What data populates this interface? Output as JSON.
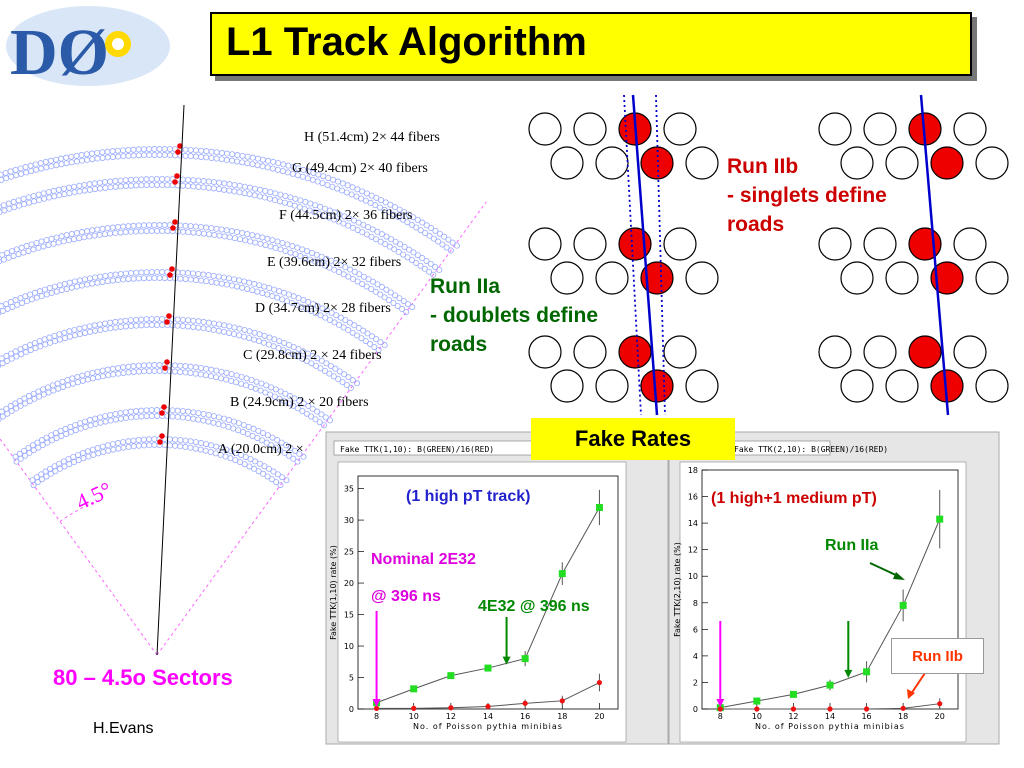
{
  "logo": {
    "text": "DØ",
    "icon": "d0-experiment-logo"
  },
  "slide_title": "L1 Track Algorithm",
  "layers": [
    {
      "label": "H (51.4cm) 2× 44 fibers"
    },
    {
      "label": "G (49.4cm) 2× 40 fibers"
    },
    {
      "label": "F (44.5cm) 2× 36 fibers"
    },
    {
      "label": "E (39.6cm) 2× 32 fibers"
    },
    {
      "label": "D (34.7cm) 2× 28 fibers"
    },
    {
      "label": "C (29.8cm) 2 × 24 fibers"
    },
    {
      "label": "B (24.9cm) 2 × 20 fibers"
    },
    {
      "label": "A (20.0cm) 2 ×"
    }
  ],
  "sector_angle_label": "4.5°",
  "sectors_caption": "80 – 4.5o Sectors",
  "author": "H.Evans",
  "run2a_text": {
    "line1": "Run IIa",
    "line2": "- doublets define",
    "line3": "roads"
  },
  "run2b_text": {
    "line1": "Run IIb",
    "line2": "- singlets define",
    "line3": "roads"
  },
  "fake_rates_label": "Fake Rates",
  "colors": {
    "title_bg": "#ffff00",
    "hit": "#ee0000",
    "track": "#0000cc",
    "run2a": "#006600",
    "run2b": "#cc0000",
    "magenta": "#ff00ff"
  },
  "chart_data": [
    {
      "type": "line",
      "pad_header": "Fake TTK(1,10): B(GREEN)/16(RED)",
      "annotation": "(1 high pT track)",
      "xlabel": "No. of Poisson pythia minibias",
      "ylabel": "Fake TTK(1,10) rate (%)",
      "xlim": [
        7,
        21
      ],
      "ylim": [
        0,
        37
      ],
      "xticks": [
        8,
        10,
        12,
        14,
        16,
        18,
        20
      ],
      "yticks": [
        0,
        5,
        10,
        15,
        20,
        25,
        30,
        35
      ],
      "x": [
        8,
        10,
        12,
        14,
        16,
        18,
        20
      ],
      "series": [
        {
          "color": "green",
          "values": [
            1.0,
            3.2,
            5.3,
            6.5,
            8.0,
            21.5,
            32.0
          ],
          "errors": [
            0.3,
            0.3,
            0.3,
            0.4,
            1.2,
            1.8,
            2.8
          ]
        },
        {
          "color": "red",
          "values": [
            0.1,
            0.1,
            0.2,
            0.4,
            0.9,
            1.3,
            4.2
          ],
          "errors": [
            0.1,
            0.1,
            0.2,
            0.3,
            0.6,
            0.8,
            1.4
          ]
        }
      ],
      "callouts": [
        {
          "text1": "Nominal 2E32",
          "text2": "@ 396 ns",
          "arrow_x": 8,
          "color": "#ff00ff"
        },
        {
          "text1": "4E32 @ 396 ns",
          "arrow_x": 15,
          "color": "#008800"
        }
      ]
    },
    {
      "type": "line",
      "pad_header": "Fake TTK(2,10): B(GREEN)/16(RED)",
      "annotation": "(1 high+1 medium pT)",
      "xlabel": "No. of Poisson pythia minibias",
      "ylabel": "Fake TTK(2,10) rate (%)",
      "xlim": [
        7,
        21
      ],
      "ylim": [
        0,
        18
      ],
      "xticks": [
        8,
        10,
        12,
        14,
        16,
        18,
        20
      ],
      "yticks": [
        0,
        2,
        4,
        6,
        8,
        10,
        12,
        14,
        16,
        18
      ],
      "x": [
        8,
        10,
        12,
        14,
        16,
        18,
        20
      ],
      "series": [
        {
          "name": "Run IIa",
          "color": "green",
          "values": [
            0.1,
            0.6,
            1.1,
            1.8,
            2.8,
            7.8,
            14.3
          ],
          "errors": [
            0.1,
            0.2,
            0.2,
            0.4,
            0.8,
            1.2,
            2.2
          ]
        },
        {
          "name": "Run IIb",
          "color": "red",
          "values": [
            0.0,
            0.0,
            0.0,
            0.0,
            0.0,
            0.05,
            0.4
          ],
          "errors": [
            0.0,
            0.0,
            0.0,
            0.0,
            0.05,
            0.1,
            0.4
          ]
        }
      ],
      "callouts": [
        {
          "arrow_x": 8,
          "color": "#ff00ff"
        },
        {
          "arrow_x": 15,
          "color": "#008800"
        }
      ]
    }
  ]
}
